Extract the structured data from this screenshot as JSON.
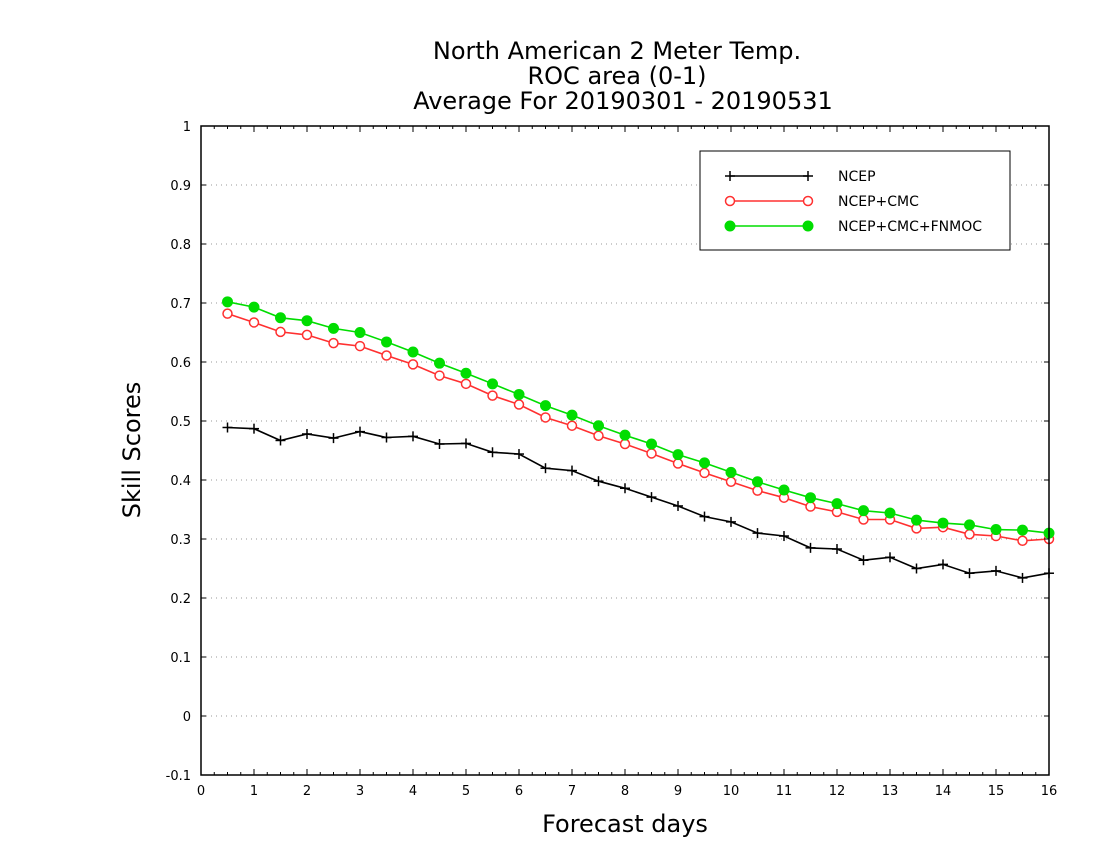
{
  "chart_data": {
    "type": "line",
    "title": "North American 2 Meter Temp.",
    "subtitle": "ROC area (0-1)",
    "subtitle2": "Average For 20190301 - 20190531",
    "xlabel": "Forecast days",
    "ylabel": "Skill Scores",
    "xlim": [
      0,
      16
    ],
    "ylim": [
      -0.1,
      1
    ],
    "xticks": [
      0,
      1,
      2,
      3,
      4,
      5,
      6,
      7,
      8,
      9,
      10,
      11,
      12,
      13,
      14,
      15,
      16
    ],
    "yticks": [
      -0.1,
      0,
      0.1,
      0.2,
      0.3,
      0.4,
      0.5,
      0.6,
      0.7,
      0.8,
      0.9,
      1
    ],
    "ytick_labels": [
      "-0.1",
      "0",
      "0.1",
      "0.2",
      "0.3",
      "0.4",
      "0.5",
      "0.6",
      "0.7",
      "0.8",
      "0.9",
      "1"
    ],
    "grid": "horizontal dotted",
    "legend_position": "top-right",
    "x": [
      0.5,
      1,
      1.5,
      2,
      2.5,
      3,
      3.5,
      4,
      4.5,
      5,
      5.5,
      6,
      6.5,
      7,
      7.5,
      8,
      8.5,
      9,
      9.5,
      10,
      10.5,
      11,
      11.5,
      12,
      12.5,
      13,
      13.5,
      14,
      14.5,
      15,
      15.5,
      16
    ],
    "series": [
      {
        "name": "NCEP",
        "color": "#000000",
        "marker": "plus",
        "values": [
          0.489,
          0.487,
          0.467,
          0.478,
          0.471,
          0.482,
          0.472,
          0.474,
          0.461,
          0.462,
          0.447,
          0.444,
          0.42,
          0.416,
          0.398,
          0.386,
          0.371,
          0.356,
          0.338,
          0.329,
          0.31,
          0.305,
          0.285,
          0.283,
          0.264,
          0.269,
          0.25,
          0.257,
          0.242,
          0.246,
          0.234,
          0.242
        ]
      },
      {
        "name": "NCEP+CMC",
        "color": "#ff3030",
        "marker": "open-circle",
        "values": [
          0.682,
          0.667,
          0.651,
          0.646,
          0.632,
          0.627,
          0.611,
          0.596,
          0.577,
          0.563,
          0.543,
          0.528,
          0.506,
          0.492,
          0.475,
          0.461,
          0.445,
          0.428,
          0.412,
          0.397,
          0.382,
          0.37,
          0.355,
          0.346,
          0.333,
          0.333,
          0.318,
          0.32,
          0.308,
          0.305,
          0.297,
          0.3
        ]
      },
      {
        "name": "NCEP+CMC+FNMOC",
        "color": "#00dd00",
        "marker": "filled-circle",
        "values": [
          0.702,
          0.693,
          0.675,
          0.67,
          0.657,
          0.65,
          0.634,
          0.617,
          0.598,
          0.581,
          0.563,
          0.545,
          0.526,
          0.51,
          0.492,
          0.476,
          0.461,
          0.443,
          0.429,
          0.413,
          0.397,
          0.383,
          0.37,
          0.36,
          0.348,
          0.344,
          0.332,
          0.327,
          0.324,
          0.316,
          0.315,
          0.31
        ]
      }
    ]
  }
}
